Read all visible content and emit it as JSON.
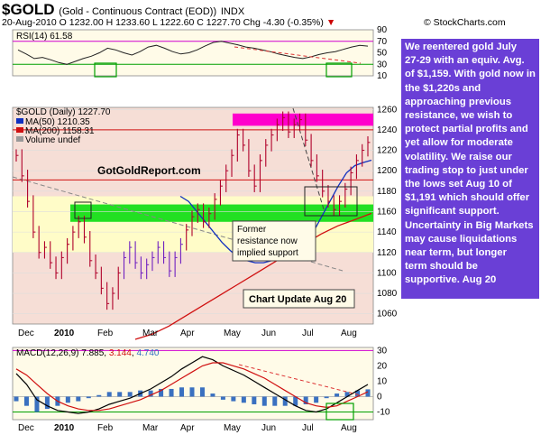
{
  "header": {
    "symbol": "$GOLD",
    "subtitle": "(Gold - Continuous Contract (EOD))",
    "exchange": "INDX",
    "date": "20-Aug-2010",
    "ohlc": "O 1232.00  H 1233.60  L 1222.60  C 1227.70",
    "change": "Chg -4.30 (-0.35%)",
    "brand": "© StockCharts.com"
  },
  "note": {
    "lines": [
      "We reentered gold July",
      "27-29 with an equiv. Avg.",
      "of $1,159.  With gold now in",
      "the $1,220s and",
      "approaching previous",
      "resistance, we wish to",
      "protect partial profits and",
      "yet allow for moderate",
      "volatility. We raise our",
      "trading stop to just under",
      "the lows set Aug 10 of",
      "$1,191 which should offer",
      "significant support.",
      "Uncertainty in Big Markets",
      "may cause liquidations",
      "near term, but longer",
      "term should be",
      "supportive. Aug 20"
    ]
  },
  "annotations": {
    "watermark": "GotGoldReport.com",
    "support_box_lines": [
      "Former",
      "resistance now",
      "implied support"
    ],
    "update_box": "Chart Update Aug 20"
  },
  "chart_data": [
    {
      "type": "line",
      "title": "RSI(14) 61.58",
      "indicator": "RSI(14)",
      "last": 61.58,
      "ylim": [
        10,
        90
      ],
      "ticks": [
        90,
        70,
        50,
        30,
        10
      ],
      "reference_lines": [
        70,
        30
      ],
      "values": [
        55,
        48,
        40,
        42,
        38,
        33,
        30,
        35,
        40,
        44,
        50,
        58,
        55,
        50,
        46,
        52,
        60,
        63,
        58,
        52,
        48,
        50,
        55,
        62,
        68,
        70,
        67,
        64,
        60,
        58,
        55,
        52,
        48,
        45,
        42,
        40,
        43,
        47,
        50,
        52,
        56,
        60,
        63,
        61.58
      ]
    },
    {
      "type": "line",
      "title": "$GOLD (Daily) 1227.70",
      "ylabel": "",
      "ylim": [
        1050,
        1262
      ],
      "yticks": [
        1060,
        1080,
        1100,
        1120,
        1140,
        1160,
        1180,
        1200,
        1220,
        1240,
        1260
      ],
      "x_labels": [
        "Dec",
        "2010",
        "Feb",
        "Mar",
        "Apr",
        "May",
        "Jun",
        "Jul",
        "Aug"
      ],
      "legend": [
        "$GOLD (Daily) 1227.70",
        "MA(50) 1210.35",
        "MA(200) 1158.31",
        "Volume undef"
      ],
      "colors": {
        "price": "#b0002a",
        "ma50": "#1030c0",
        "ma200": "#d01010",
        "support_band": "#22e022",
        "resistance_band": "#ff00cc",
        "note_box": "#6a3fd6"
      },
      "resistance_band": [
        1244,
        1256
      ],
      "support_band": [
        1150,
        1167
      ],
      "horizontal_lines": [
        1240,
        1191
      ],
      "series": [
        {
          "name": "$GOLD (Daily)",
          "values": [
            1215,
            1195,
            1170,
            1140,
            1120,
            1125,
            1110,
            1100,
            1115,
            1128,
            1140,
            1150,
            1135,
            1112,
            1100,
            1085,
            1070,
            1080,
            1100,
            1115,
            1125,
            1110,
            1100,
            1108,
            1115,
            1125,
            1115,
            1102,
            1115,
            1128,
            1142,
            1155,
            1162,
            1150,
            1158,
            1172,
            1185,
            1200,
            1215,
            1235,
            1225,
            1200,
            1185,
            1210,
            1225,
            1235,
            1245,
            1252,
            1238,
            1245,
            1250,
            1230,
            1210,
            1195,
            1180,
            1170,
            1162,
            1170,
            1182,
            1198,
            1210,
            1220,
            1227.7
          ]
        },
        {
          "name": "MA(50)",
          "values": [
            1175,
            1170,
            1160,
            1150,
            1140,
            1130,
            1122,
            1115,
            1112,
            1110,
            1110,
            1112,
            1115,
            1118,
            1122,
            1128,
            1140,
            1155,
            1170,
            1185,
            1198,
            1205,
            1208,
            1210.35
          ]
        },
        {
          "name": "MA(200)",
          "values": [
            1035,
            1040,
            1048,
            1058,
            1068,
            1078,
            1088,
            1098,
            1108,
            1118,
            1128,
            1138,
            1146,
            1152,
            1158.31
          ]
        }
      ]
    },
    {
      "type": "line",
      "title": "MACD(12,26,9) 7.885, 3.144, 4.740",
      "indicator": "MACD(12,26,9)",
      "values_legend": [
        "7.885",
        "3.144",
        "4.740"
      ],
      "ylim": [
        -15,
        32
      ],
      "yticks": [
        30,
        20,
        10,
        0,
        -10
      ],
      "x_labels": [
        "Dec",
        "2010",
        "Feb",
        "Mar",
        "Apr",
        "May",
        "Jun",
        "Jul",
        "Aug"
      ],
      "series": [
        {
          "name": "MACD",
          "values": [
            15,
            8,
            -2,
            -6,
            -9,
            -10,
            -11,
            -10,
            -8,
            -5,
            -3,
            -1,
            2,
            5,
            9,
            13,
            18,
            22,
            26,
            24,
            20,
            17,
            14,
            10,
            6,
            2,
            -2,
            -6,
            -9,
            -10,
            -8,
            -4,
            0,
            4,
            7.885
          ]
        },
        {
          "name": "Signal",
          "values": [
            18,
            14,
            8,
            2,
            -3,
            -6,
            -8,
            -9,
            -9,
            -8,
            -6,
            -4,
            -2,
            1,
            4,
            8,
            12,
            16,
            20,
            22,
            22,
            20,
            18,
            15,
            12,
            8,
            4,
            0,
            -4,
            -6,
            -7,
            -6,
            -3,
            0,
            3.144
          ]
        }
      ]
    }
  ]
}
